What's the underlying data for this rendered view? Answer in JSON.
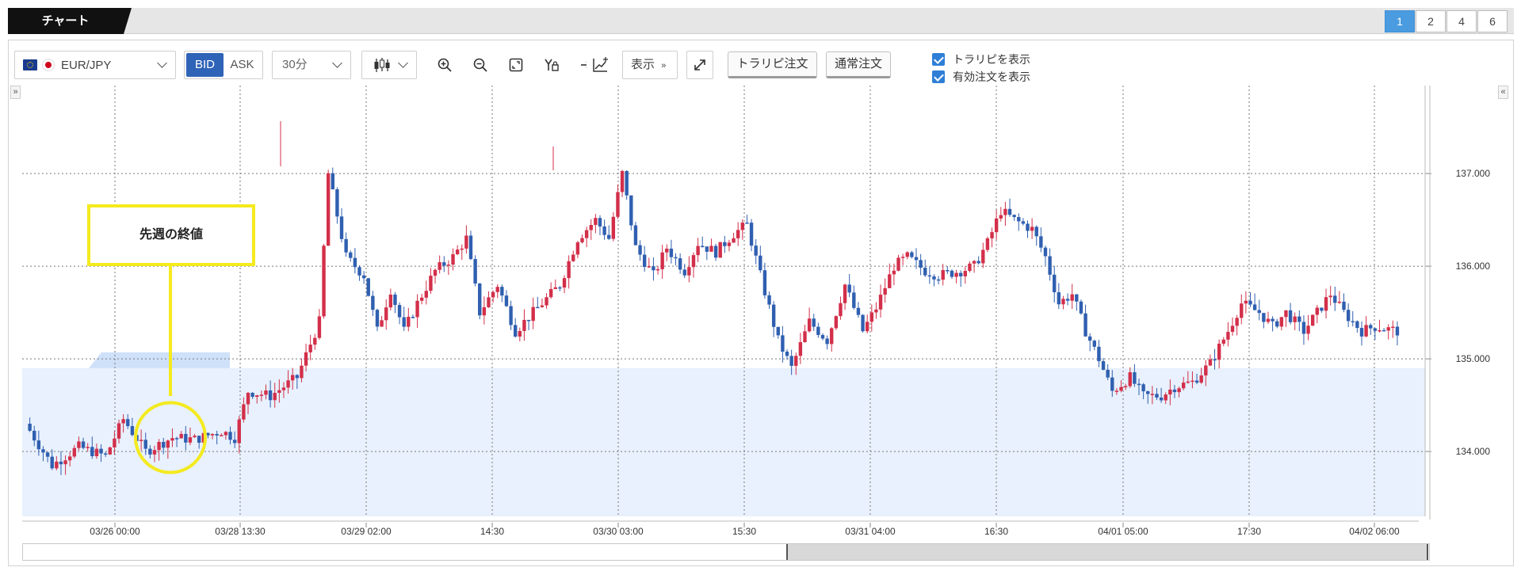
{
  "tab": {
    "title": "チャート"
  },
  "layouts": [
    "1",
    "2",
    "4",
    "6"
  ],
  "toolbar": {
    "symbol": "EUR/JPY",
    "bid_label": "BID",
    "ask_label": "ASK",
    "interval": "30分",
    "display_label": "表示",
    "order_trailing_label": "トラリピ注文",
    "order_normal_label": "通常注文",
    "check_show_trailing": "トラリピを表示",
    "check_show_orders": "有効注文を表示"
  },
  "callout": {
    "text": "先週の終値"
  },
  "colors": {
    "up": "#d32f4a",
    "down": "#2f5fb0",
    "accent": "#f4ea1e",
    "range_fill": "#e8f1fd"
  },
  "chart_data": {
    "type": "candlestick",
    "symbol": "EUR/JPY",
    "interval": "30分",
    "ylim": [
      133.3,
      137.95
    ],
    "y_ticks": [
      "134.000",
      "135.000",
      "136.000",
      "137.000"
    ],
    "x_ticks": [
      "03/26 00:00",
      "03/28 13:30",
      "03/29 02:00",
      "14:30",
      "03/30 03:00",
      "15:30",
      "03/31 04:00",
      "16:30",
      "04/01 05:00",
      "17:30",
      "04/02 06:00"
    ],
    "highlight_band_top": 134.9,
    "previous_week_close": 134.15,
    "close_path": [
      [
        0,
        134.3
      ],
      [
        6,
        133.85
      ],
      [
        12,
        134.05
      ],
      [
        18,
        133.95
      ],
      [
        22,
        134.35
      ],
      [
        27,
        134.0
      ],
      [
        33,
        134.15
      ],
      [
        38,
        134.13
      ],
      [
        44,
        134.22
      ],
      [
        47,
        134.15
      ],
      [
        50,
        134.65
      ],
      [
        55,
        134.6
      ],
      [
        61,
        134.8
      ],
      [
        66,
        135.4
      ],
      [
        68,
        137.0
      ],
      [
        72,
        136.1
      ],
      [
        76,
        135.9
      ],
      [
        79,
        135.3
      ],
      [
        82,
        135.75
      ],
      [
        85,
        135.3
      ],
      [
        88,
        135.6
      ],
      [
        92,
        135.95
      ],
      [
        96,
        136.1
      ],
      [
        99,
        136.3
      ],
      [
        102,
        135.5
      ],
      [
        106,
        135.8
      ],
      [
        110,
        135.3
      ],
      [
        115,
        135.55
      ],
      [
        120,
        135.8
      ],
      [
        124,
        136.3
      ],
      [
        128,
        136.5
      ],
      [
        131,
        136.3
      ],
      [
        134,
        137.0
      ],
      [
        137,
        136.2
      ],
      [
        141,
        135.9
      ],
      [
        144,
        136.2
      ],
      [
        148,
        135.95
      ],
      [
        151,
        136.25
      ],
      [
        155,
        136.15
      ],
      [
        159,
        136.35
      ],
      [
        162,
        136.45
      ],
      [
        165,
        135.9
      ],
      [
        169,
        135.2
      ],
      [
        172,
        134.9
      ],
      [
        176,
        135.4
      ],
      [
        180,
        135.2
      ],
      [
        184,
        135.8
      ],
      [
        188,
        135.3
      ],
      [
        191,
        135.55
      ],
      [
        195,
        136.0
      ],
      [
        198,
        136.1
      ],
      [
        202,
        135.95
      ],
      [
        205,
        135.9
      ],
      [
        210,
        135.95
      ],
      [
        213,
        136.0
      ],
      [
        216,
        136.25
      ],
      [
        219,
        136.6
      ],
      [
        222,
        136.5
      ],
      [
        226,
        136.4
      ],
      [
        229,
        136.1
      ],
      [
        232,
        135.6
      ],
      [
        235,
        135.7
      ],
      [
        238,
        135.3
      ],
      [
        241,
        135.0
      ],
      [
        244,
        134.65
      ],
      [
        248,
        134.8
      ],
      [
        251,
        134.6
      ],
      [
        255,
        134.6
      ],
      [
        258,
        134.7
      ],
      [
        262,
        134.75
      ],
      [
        266,
        134.95
      ],
      [
        270,
        135.3
      ],
      [
        273,
        135.6
      ],
      [
        277,
        135.5
      ],
      [
        280,
        135.35
      ],
      [
        283,
        135.5
      ],
      [
        287,
        135.3
      ],
      [
        290,
        135.5
      ],
      [
        293,
        135.7
      ],
      [
        296,
        135.5
      ],
      [
        300,
        135.3
      ],
      [
        303,
        135.35
      ],
      [
        308,
        135.3
      ]
    ]
  }
}
